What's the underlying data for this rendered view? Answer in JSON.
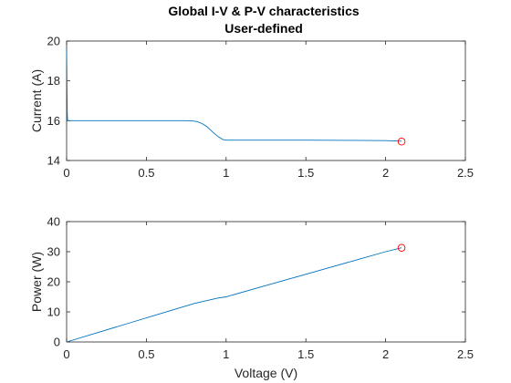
{
  "figure": {
    "title_line1": "Global I-V & P-V characteristics",
    "title_line2": "User-defined"
  },
  "chart_data": [
    {
      "type": "line",
      "title": "Global I-V & P-V characteristics / User-defined",
      "xlabel": "",
      "ylabel": "Current (A)",
      "xlim": [
        0,
        2.5
      ],
      "ylim": [
        14,
        20
      ],
      "xticks": [
        0,
        0.5,
        1,
        1.5,
        2,
        2.5
      ],
      "xtick_labels": [
        "0",
        "0.5",
        "1",
        "1.5",
        "2",
        "2.5"
      ],
      "yticks": [
        14,
        16,
        18,
        20
      ],
      "ytick_labels": [
        "14",
        "16",
        "18",
        "20"
      ],
      "grid": false,
      "series": [
        {
          "color": "#0072BD",
          "x": [
            0,
            0.002,
            0.004,
            0.006,
            0.01,
            0.05,
            0.2,
            0.4,
            0.6,
            0.7,
            0.75,
            0.8,
            0.82,
            0.85,
            0.88,
            0.9,
            0.92,
            0.95,
            0.98,
            1.0,
            1.2,
            1.5,
            1.8,
            2.0,
            2.1
          ],
          "y": [
            19.6,
            18.0,
            16.4,
            16.02,
            16.0,
            16.0,
            16.0,
            16.0,
            16.0,
            16.0,
            16.0,
            15.98,
            15.95,
            15.85,
            15.7,
            15.55,
            15.4,
            15.2,
            15.05,
            15.02,
            15.02,
            15.02,
            15.01,
            15.0,
            14.97
          ]
        }
      ],
      "markers": [
        {
          "x": 2.1,
          "y": 14.95,
          "shape": "circle",
          "color": "#FF0000"
        }
      ]
    },
    {
      "type": "line",
      "title": "",
      "xlabel": "Voltage (V)",
      "ylabel": "Power (W)",
      "xlim": [
        0,
        2.5
      ],
      "ylim": [
        0,
        40
      ],
      "xticks": [
        0,
        0.5,
        1,
        1.5,
        2,
        2.5
      ],
      "xtick_labels": [
        "0",
        "0.5",
        "1",
        "1.5",
        "2",
        "2.5"
      ],
      "yticks": [
        0,
        10,
        20,
        30,
        40
      ],
      "ytick_labels": [
        "0",
        "10",
        "20",
        "30",
        "40"
      ],
      "grid": false,
      "series": [
        {
          "color": "#0072BD",
          "x": [
            0,
            0.2,
            0.4,
            0.6,
            0.8,
            0.9,
            0.95,
            1.0,
            1.2,
            1.4,
            1.6,
            1.8,
            2.0,
            2.1
          ],
          "y": [
            0,
            3.2,
            6.4,
            9.6,
            12.8,
            14.0,
            14.6,
            15.0,
            18.0,
            21.0,
            24.0,
            27.0,
            30.0,
            31.3
          ]
        }
      ],
      "markers": [
        {
          "x": 2.1,
          "y": 31.3,
          "shape": "circle",
          "color": "#FF0000"
        }
      ]
    }
  ]
}
